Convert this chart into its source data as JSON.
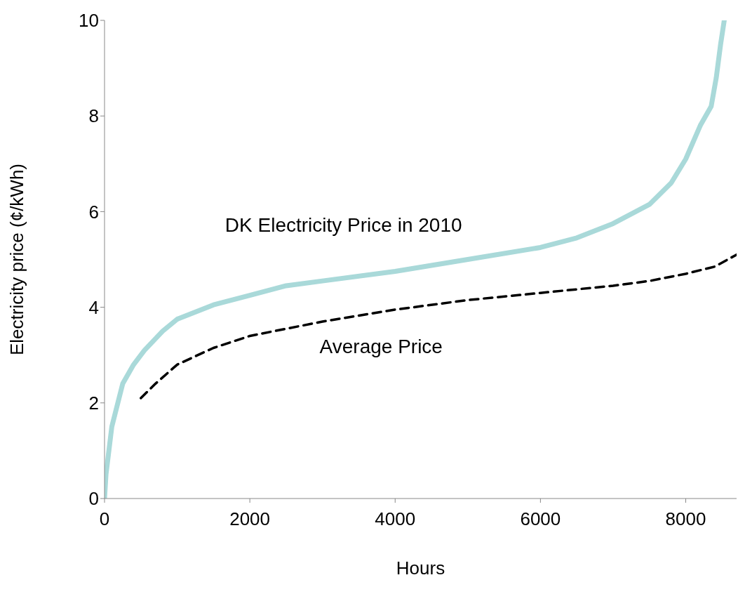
{
  "chart_data": {
    "type": "line",
    "xlabel": "Hours",
    "ylabel": "Electricity price (¢/kWh)",
    "xlim": [
      0,
      8700
    ],
    "xticks": [
      0,
      2000,
      4000,
      6000,
      8000
    ],
    "ylim": [
      0,
      10
    ],
    "yticks": [
      0,
      2,
      4,
      6,
      8,
      10
    ],
    "grid": false,
    "legend": false,
    "marker": "none",
    "series": [
      {
        "name": "DK Electricity Price in 2010",
        "color": "#a9d9d9",
        "line_style": "solid",
        "x": [
          0,
          20,
          60,
          100,
          150,
          250,
          400,
          550,
          800,
          1000,
          1500,
          2000,
          2500,
          3000,
          4000,
          5000,
          6000,
          6500,
          7000,
          7500,
          7800,
          8000,
          8200,
          8350,
          8420,
          8480,
          8530
        ],
        "values": [
          0,
          0.5,
          1.0,
          1.5,
          1.8,
          2.4,
          2.8,
          3.1,
          3.5,
          3.75,
          4.05,
          4.25,
          4.45,
          4.55,
          4.75,
          5.0,
          5.25,
          5.45,
          5.75,
          6.15,
          6.6,
          7.1,
          7.8,
          8.2,
          8.8,
          9.5,
          10
        ]
      },
      {
        "name": "Average Price",
        "color": "#000000",
        "line_style": "dashed",
        "x": [
          500,
          700,
          1000,
          1500,
          2000,
          3000,
          4000,
          5000,
          6000,
          7000,
          7500,
          8000,
          8400,
          8700
        ],
        "values": [
          2.1,
          2.4,
          2.8,
          3.15,
          3.4,
          3.7,
          3.95,
          4.15,
          4.3,
          4.45,
          4.55,
          4.7,
          4.85,
          5.1
        ]
      }
    ]
  }
}
